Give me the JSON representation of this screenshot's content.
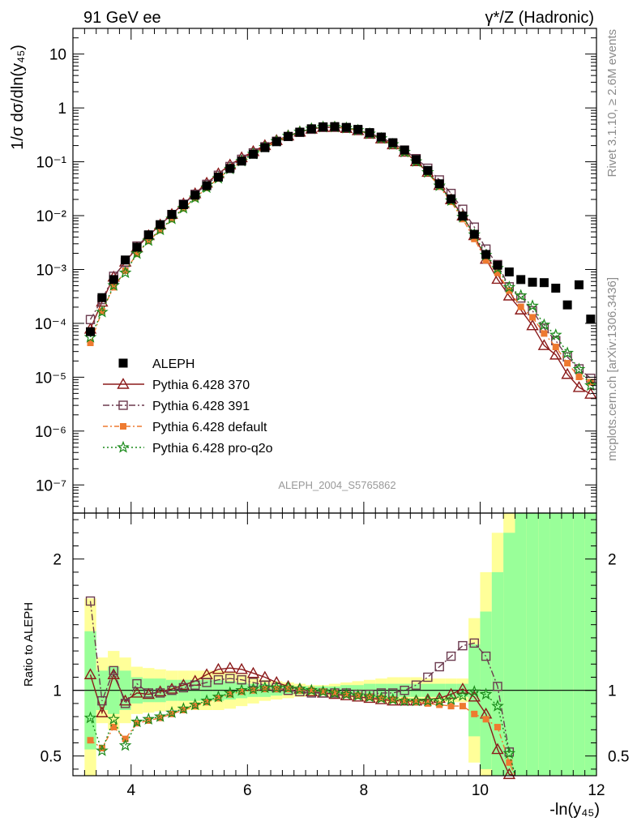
{
  "header": {
    "left": "91 GeV ee",
    "right": "γ*/Z (Hadronic)"
  },
  "side_text": {
    "rivet": "Rivet 3.1.10, ≥ 2.6M events",
    "mcplots": "mcplots.cern.ch [arXiv:1306.3436]"
  },
  "analysis_id": "ALEPH_2004_S5765862",
  "axes": {
    "ylabel_main": "1/σ dσ/dln(y₄₅)",
    "ylabel_ratio": "Ratio to ALEPH",
    "xlabel": "-ln(y₄₅)"
  },
  "colors": {
    "aleph": "#000000",
    "p370": "#8b1a1a",
    "p391": "#6b3a4e",
    "pdefault": "#ee7a30",
    "pq2o": "#1a8a1a",
    "band_yellow": "#ffff99",
    "band_green": "#99ff99"
  },
  "chart_data": {
    "type": "scatter",
    "x_range": [
      3.0,
      12.0
    ],
    "main": {
      "y_scale": "log",
      "y_range": [
        3e-08,
        30
      ],
      "y_ticks": [
        "10⁻⁷",
        "10⁻⁶",
        "10⁻⁵",
        "10⁻⁴",
        "10⁻³",
        "10⁻²",
        "10⁻¹",
        "1",
        "10"
      ]
    },
    "ratio": {
      "y_range": [
        0.35,
        2.35
      ],
      "y_ticks": [
        "0.5",
        "1",
        "2"
      ]
    },
    "x_ticks": [
      "4",
      "6",
      "8",
      "10",
      "12"
    ],
    "legend_position": "bottom-left",
    "legend": [
      {
        "key": "aleph",
        "label": "ALEPH"
      },
      {
        "key": "p370",
        "label": "Pythia 6.428 370"
      },
      {
        "key": "p391",
        "label": "Pythia 6.428 391"
      },
      {
        "key": "pdefault",
        "label": "Pythia 6.428 default"
      },
      {
        "key": "pq2o",
        "label": "Pythia 6.428 pro-q2o"
      }
    ],
    "x": [
      3.3,
      3.5,
      3.7,
      3.9,
      4.1,
      4.3,
      4.5,
      4.7,
      4.9,
      5.1,
      5.3,
      5.5,
      5.7,
      5.9,
      6.1,
      6.3,
      6.5,
      6.7,
      6.9,
      7.1,
      7.3,
      7.5,
      7.7,
      7.9,
      8.1,
      8.3,
      8.5,
      8.7,
      8.9,
      9.1,
      9.3,
      9.5,
      9.7,
      9.9,
      10.1,
      10.3,
      10.5,
      10.7,
      10.9,
      11.1,
      11.3,
      11.5,
      11.7,
      11.9
    ],
    "aleph": [
      7e-05,
      0.0003,
      0.00065,
      0.0015,
      0.0026,
      0.0044,
      0.0068,
      0.0105,
      0.016,
      0.024,
      0.036,
      0.052,
      0.075,
      0.103,
      0.138,
      0.183,
      0.236,
      0.295,
      0.355,
      0.41,
      0.445,
      0.45,
      0.435,
      0.4,
      0.348,
      0.288,
      0.226,
      0.165,
      0.11,
      0.069,
      0.039,
      0.0205,
      0.0098,
      0.0045,
      0.0019,
      0.0012,
      0.0009,
      0.00065,
      0.00058,
      0.00057,
      0.00045,
      0.00022,
      0.00052,
      0.00012
    ],
    "ratio_x": [
      3.3,
      3.5,
      3.7,
      3.9,
      4.1,
      4.3,
      4.5,
      4.7,
      4.9,
      5.1,
      5.3,
      5.5,
      5.7,
      5.9,
      6.1,
      6.3,
      6.5,
      6.7,
      6.9,
      7.1,
      7.3,
      7.5,
      7.7,
      7.9,
      8.1,
      8.3,
      8.5,
      8.7,
      8.9,
      9.1,
      9.3,
      9.5,
      9.7,
      9.9,
      10.1,
      10.3,
      10.5
    ],
    "r370": [
      1.12,
      0.83,
      1.12,
      0.92,
      0.98,
      0.97,
      0.99,
      1.01,
      1.04,
      1.07,
      1.12,
      1.16,
      1.17,
      1.16,
      1.13,
      1.1,
      1.06,
      1.03,
      1.01,
      0.99,
      0.98,
      0.97,
      0.96,
      0.95,
      0.94,
      0.93,
      0.92,
      0.92,
      0.92,
      0.93,
      0.94,
      0.97,
      1.01,
      0.95,
      0.82,
      0.55,
      0.36
    ],
    "r391": [
      1.68,
      0.92,
      1.15,
      0.9,
      1.05,
      0.98,
      0.98,
      1.0,
      1.02,
      1.04,
      1.06,
      1.08,
      1.09,
      1.08,
      1.06,
      1.04,
      1.02,
      1.0,
      0.99,
      0.98,
      0.98,
      0.98,
      0.98,
      0.97,
      0.97,
      0.98,
      0.98,
      1.0,
      1.04,
      1.1,
      1.18,
      1.26,
      1.34,
      1.36,
      1.26,
      1.03,
      0.53
    ],
    "rdefault": [
      0.62,
      0.56,
      0.72,
      0.63,
      0.75,
      0.77,
      0.79,
      0.82,
      0.85,
      0.88,
      0.91,
      0.94,
      0.97,
      0.99,
      1.0,
      1.01,
      1.01,
      1.01,
      1.0,
      1.0,
      0.99,
      0.98,
      0.97,
      0.96,
      0.95,
      0.94,
      0.93,
      0.92,
      0.91,
      0.9,
      0.89,
      0.88,
      0.88,
      0.82,
      0.78,
      0.72,
      0.45
    ],
    "rq2o": [
      0.79,
      0.54,
      0.78,
      0.58,
      0.76,
      0.78,
      0.8,
      0.83,
      0.86,
      0.89,
      0.92,
      0.95,
      0.98,
      1.0,
      1.01,
      1.02,
      1.02,
      1.02,
      1.01,
      1.0,
      0.99,
      0.98,
      0.97,
      0.96,
      0.95,
      0.94,
      0.93,
      0.92,
      0.92,
      0.92,
      0.92,
      0.93,
      0.96,
      0.99,
      0.97,
      0.88,
      0.52
    ]
  }
}
